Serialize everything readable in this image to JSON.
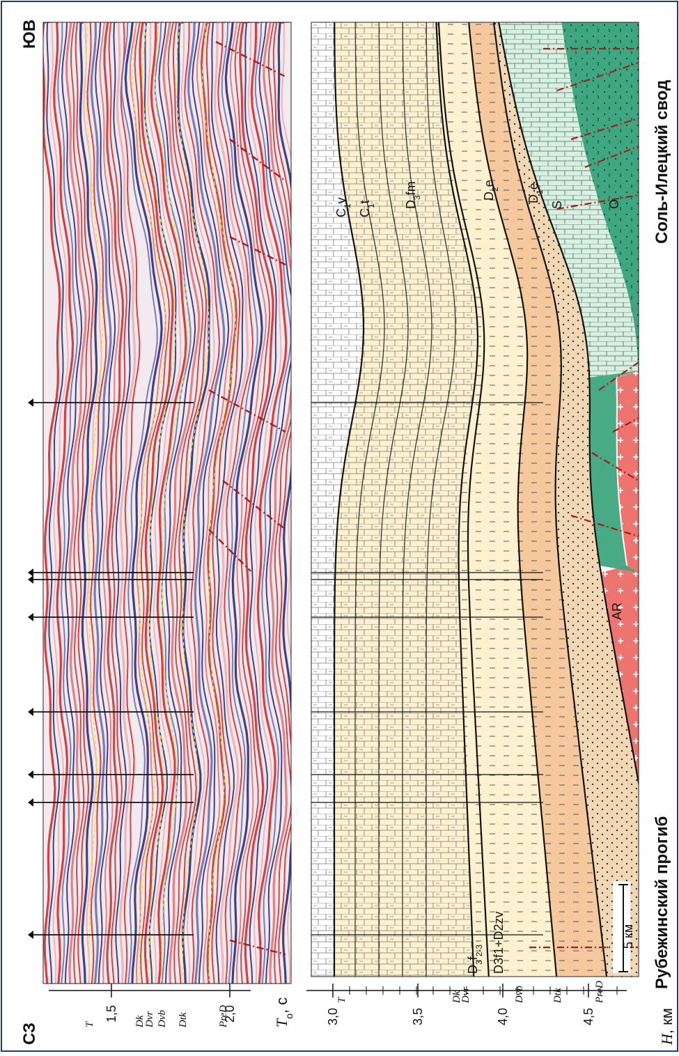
{
  "figure": {
    "orientation": "rotated-90-ccw",
    "direction_left": "СЗ",
    "direction_right": "ЮВ",
    "scale_bar_label": "5 км",
    "region_labels": [
      "Рубежинский прогиб",
      "Соль-Илецкий свод"
    ]
  },
  "seismic_panel": {
    "time_axis_label": "T",
    "time_axis_subscript": "o",
    "time_axis_unit": ", с",
    "time_ticks": [
      "1,5",
      "2,0"
    ],
    "horizons": [
      "T",
      "Dk",
      "Dvr",
      "Dvb",
      "Dtk",
      "PreD"
    ],
    "colors": {
      "red": "#d82a2a",
      "blue": "#2b2f7a",
      "yellow": "#f0e030",
      "fault": "#b01818"
    }
  },
  "geologic_panel": {
    "depth_axis_label": "H",
    "depth_axis_unit": ", км",
    "depth_ticks": [
      "3,0",
      "3,5",
      "4,0",
      "4,5"
    ],
    "horizons": [
      "T",
      "Dk",
      "Dvr",
      "Dvb",
      "Dtk",
      "PreD"
    ],
    "units": [
      {
        "label": "C1v",
        "name": "C",
        "sub": "1",
        "suffix": "v"
      },
      {
        "label": "C1t",
        "name": "C",
        "sub": "1",
        "suffix": "t"
      },
      {
        "label": "D3fm",
        "name": "D",
        "sub": "3",
        "suffix": "fm"
      },
      {
        "label": "D3f2-3",
        "name": "D",
        "sub": "3",
        "suffix": "f",
        "sub2": "2-3"
      },
      {
        "label": "D3f1+D2zv",
        "text": "D3f1+D2zv"
      },
      {
        "label": "D2e",
        "name": "D",
        "sub": "2",
        "suffix": "e"
      },
      {
        "label": "D1e",
        "name": "D",
        "sub": "1",
        "suffix": "e"
      },
      {
        "label": "S",
        "name": "S"
      },
      {
        "label": "O",
        "name": "O"
      },
      {
        "label": "AR",
        "name": "AR"
      }
    ],
    "colors": {
      "carbonate": "#fffdf2",
      "carbonate_warm": "#fdf1cf",
      "clastic": "#f5c99d",
      "sandy": "#f2d7b5",
      "silurian": "#d9efe2",
      "ordovician": "#3ea680",
      "basement": "#ee7470"
    }
  }
}
